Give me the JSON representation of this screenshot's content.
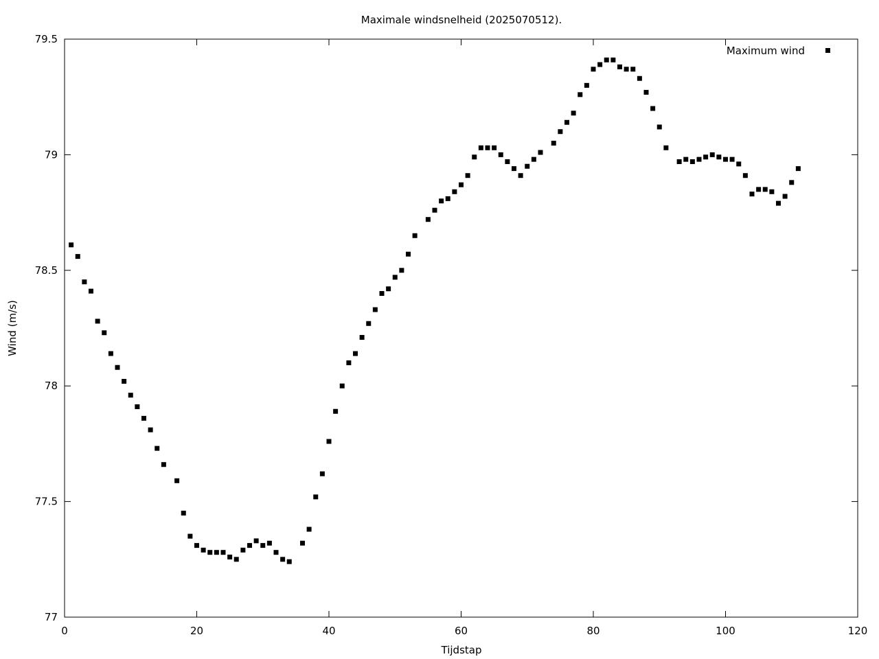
{
  "chart_data": {
    "type": "scatter",
    "title": "Maximale windsnelheid (2025070512).",
    "xlabel": "Tijdstap",
    "ylabel": "Wind (m/s)",
    "xlim": [
      0,
      120
    ],
    "ylim": [
      77,
      79.5
    ],
    "xticks": [
      0,
      20,
      40,
      60,
      80,
      100,
      120
    ],
    "xtick_labels": [
      "0",
      "20",
      "40",
      "60",
      "80",
      "100",
      "120"
    ],
    "yticks": [
      77,
      77.5,
      78,
      78.5,
      79,
      79.5
    ],
    "ytick_labels": [
      "77",
      "77.5",
      "78",
      "78.5",
      "79",
      "79.5"
    ],
    "grid": false,
    "legend_position": "top-right",
    "marker": "square",
    "color": "#000000",
    "series": [
      {
        "name": "Maximum wind",
        "x": [
          1,
          2,
          3,
          4,
          5,
          6,
          7,
          8,
          9,
          10,
          11,
          12,
          13,
          14,
          15,
          17,
          18,
          19,
          20,
          21,
          22,
          23,
          24,
          25,
          26,
          27,
          28,
          29,
          30,
          31,
          32,
          33,
          34,
          36,
          37,
          38,
          39,
          40,
          41,
          42,
          43,
          44,
          45,
          46,
          47,
          48,
          49,
          50,
          51,
          52,
          53,
          55,
          56,
          57,
          58,
          59,
          60,
          61,
          62,
          63,
          64,
          65,
          66,
          67,
          68,
          69,
          70,
          71,
          72,
          74,
          75,
          76,
          77,
          78,
          79,
          80,
          81,
          82,
          83,
          84,
          85,
          86,
          87,
          88,
          89,
          90,
          91,
          93,
          94,
          95,
          96,
          97,
          98,
          99,
          100,
          101,
          102,
          103,
          104,
          105,
          106,
          107,
          108,
          109,
          110,
          111
        ],
        "y": [
          78.61,
          78.56,
          78.45,
          78.41,
          78.28,
          78.23,
          78.14,
          78.08,
          78.02,
          77.96,
          77.91,
          77.86,
          77.81,
          77.73,
          77.66,
          77.59,
          77.45,
          77.35,
          77.31,
          77.29,
          77.28,
          77.28,
          77.28,
          77.26,
          77.25,
          77.29,
          77.31,
          77.33,
          77.31,
          77.32,
          77.28,
          77.25,
          77.24,
          77.32,
          77.38,
          77.52,
          77.62,
          77.76,
          77.89,
          78.0,
          78.1,
          78.14,
          78.21,
          78.27,
          78.33,
          78.4,
          78.42,
          78.47,
          78.5,
          78.57,
          78.65,
          78.72,
          78.76,
          78.8,
          78.81,
          78.84,
          78.87,
          78.91,
          78.99,
          79.03,
          79.03,
          79.03,
          79.0,
          78.97,
          78.94,
          78.91,
          78.95,
          78.98,
          79.01,
          79.05,
          79.1,
          79.14,
          79.18,
          79.26,
          79.3,
          79.37,
          79.39,
          79.41,
          79.41,
          79.38,
          79.37,
          79.37,
          79.33,
          79.27,
          79.2,
          79.12,
          79.03,
          78.97,
          78.98,
          78.97,
          78.98,
          78.99,
          79.0,
          78.99,
          78.98,
          78.98,
          78.96,
          78.91,
          78.83,
          78.85,
          78.85,
          78.84,
          78.79,
          78.82,
          78.88,
          78.94
        ]
      }
    ]
  }
}
